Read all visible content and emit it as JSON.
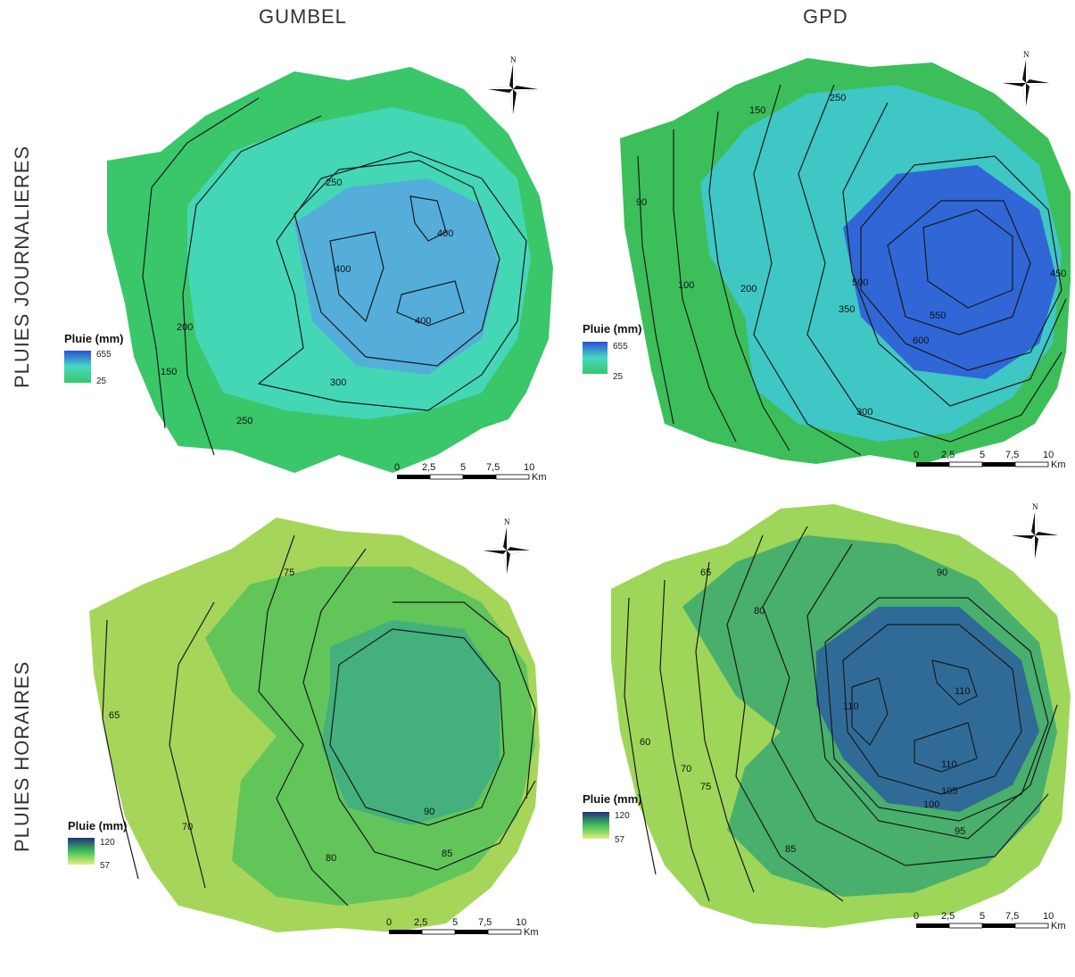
{
  "columns": [
    "GUMBEL",
    "GPD"
  ],
  "rows": [
    "PLUIES JOURNALIERES",
    "PLUIES HORAIRES"
  ],
  "north_label": "N",
  "scale_bar": {
    "ticks": [
      "0",
      "2,5",
      "5",
      "7,5",
      "10"
    ],
    "unit": "Km"
  },
  "panels": [
    {
      "id": "gumbel-daily",
      "legend": {
        "title": "Pluie (mm)",
        "max": "655",
        "min": "25",
        "color_low": "#39c76a",
        "color_high": "#2a4fd6"
      },
      "fill_outer": "#39c76a",
      "fill_mid": "#46d9c2",
      "fill_inner": "#5aa0e6",
      "contour_labels": [
        "250",
        "400",
        "400",
        "400",
        "300",
        "250",
        "200",
        "150"
      ]
    },
    {
      "id": "gpd-daily",
      "legend": {
        "title": "Pluie (mm)",
        "max": "655",
        "min": "25",
        "color_low": "#39c76a",
        "color_high": "#2a4fd6"
      },
      "fill_outer": "#3cbf5a",
      "fill_mid": "#3ec8d8",
      "fill_inner": "#2e55d8",
      "contour_labels": [
        "250",
        "150",
        "90",
        "100",
        "200",
        "350",
        "550",
        "600",
        "450",
        "300",
        "500"
      ]
    },
    {
      "id": "gumbel-hourly",
      "legend": {
        "title": "Pluie (mm)",
        "max": "120",
        "min": "57",
        "color_low": "#e3f07a",
        "color_high": "#22307a"
      },
      "fill_outer": "#a5d65a",
      "fill_mid": "#55c25a",
      "fill_inner": "#3aa88a",
      "contour_labels": [
        "75",
        "65",
        "70",
        "80",
        "90",
        "85"
      ]
    },
    {
      "id": "gpd-hourly",
      "legend": {
        "title": "Pluie (mm)",
        "max": "120",
        "min": "57",
        "color_low": "#e3f07a",
        "color_high": "#22307a"
      },
      "fill_outer": "#9ed65a",
      "fill_mid": "#3aa870",
      "fill_inner": "#2b5fa0",
      "contour_labels": [
        "65",
        "90",
        "80",
        "110",
        "110",
        "110",
        "60",
        "70",
        "75",
        "105",
        "100",
        "95",
        "85"
      ]
    }
  ]
}
